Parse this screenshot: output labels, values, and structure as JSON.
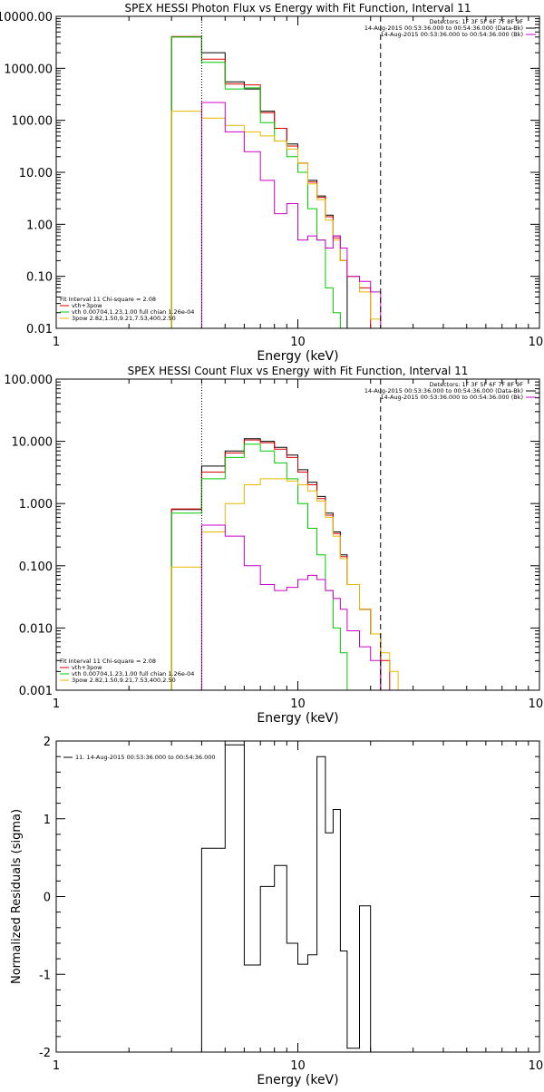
{
  "chart_data": [
    {
      "type": "line",
      "title": "SPEX HESSI Photon Flux vs Energy with Fit Function, Interval 11",
      "xlabel": "Energy (keV)",
      "ylabel": "",
      "xscale": "log",
      "yscale": "log",
      "xlim": [
        1,
        100
      ],
      "ylim": [
        0.01,
        10000
      ],
      "x_tick_labels": [
        "1",
        "10",
        "100"
      ],
      "y_tick_labels": [
        "0.01",
        "0.10",
        "1.00",
        "10.00",
        "100.00",
        "1000.00",
        "10000.00"
      ],
      "vlines": [
        {
          "x": 4.0,
          "style": "dotted",
          "color": "#000000"
        },
        {
          "x": 22.0,
          "style": "dashed",
          "color": "#000000"
        }
      ],
      "header_lines": [
        "Detectors: 1F 3F 5F 6F 7F 8F 9F",
        "14-Aug-2015 00:53:36.000 to 00:54:36.000 (Data-Bk)",
        "14-Aug-2015 00:53:36.000 to 00:54:36.000 (Bk)"
      ],
      "header_colors": [
        "#000000",
        "#000000",
        "#cc00cc"
      ],
      "legend_title": "Fit Interval 11    Chi-square = 2.08",
      "legend_lines": [
        "vth+3pow",
        "vth 0.00704,1.23,1.00  full chian 1.26e-04",
        "3pow 2.82,1.50,9.21,7.53,400,2.50"
      ],
      "legend_colors": [
        "#dd0000",
        "#00cc00",
        "#e8b800"
      ],
      "edges": [
        3.0,
        4.0,
        5.0,
        6.0,
        7.0,
        8.0,
        9.0,
        10.0,
        11.0,
        12.0,
        13.0,
        14.0,
        15.0,
        16.0,
        18.0,
        20.0,
        22.0,
        24.0,
        26.0,
        28.0
      ],
      "series": [
        {
          "name": "",
          "color": "#000000",
          "values": [
            4000,
            2000,
            550,
            400,
            150,
            70,
            35,
            15,
            7,
            3.5,
            1.5,
            0.6,
            0.2,
            null,
            null,
            null,
            null,
            null,
            null
          ]
        },
        {
          "name": "",
          "color": "#dd0000",
          "values": [
            4100,
            1500,
            500,
            480,
            140,
            70,
            32,
            15,
            6.5,
            3.3,
            1.4,
            0.55,
            0.2,
            0.1,
            0.06,
            null,
            null,
            null,
            null
          ]
        },
        {
          "name": "",
          "color": "#00cc00",
          "values": [
            4000,
            1300,
            400,
            420,
            90,
            40,
            20,
            10,
            2,
            0.5,
            0.06,
            0.02,
            0.005,
            null,
            null,
            null,
            null,
            null,
            null
          ]
        },
        {
          "name": "",
          "color": "#e8b800",
          "values": [
            150,
            110,
            80,
            60,
            50,
            40,
            28,
            15,
            6,
            3,
            1.2,
            0.5,
            0.2,
            0.1,
            0.05,
            0.015,
            0.01,
            0.005,
            null
          ]
        },
        {
          "name": "",
          "color": "#cc00cc",
          "values": [
            null,
            220,
            60,
            25,
            7,
            1.6,
            2.5,
            0.5,
            0.6,
            0.5,
            0.35,
            0.6,
            0.35,
            0.1,
            0.08,
            0.05,
            0.005,
            null,
            null
          ]
        }
      ]
    },
    {
      "type": "line",
      "title": "SPEX HESSI Count Flux vs Energy with Fit Function, Interval 11",
      "xlabel": "Energy (keV)",
      "ylabel": "",
      "xscale": "log",
      "yscale": "log",
      "xlim": [
        1,
        100
      ],
      "ylim": [
        0.001,
        100
      ],
      "x_tick_labels": [
        "1",
        "10",
        "100"
      ],
      "y_tick_labels": [
        "0.001",
        "0.010",
        "0.100",
        "1.000",
        "10.000",
        "100.000"
      ],
      "vlines": [
        {
          "x": 4.0,
          "style": "dotted",
          "color": "#000000"
        },
        {
          "x": 22.0,
          "style": "dashed",
          "color": "#000000"
        }
      ],
      "header_lines": [
        "Detectors: 1F 3F 5F 6F 7F 8F 9F",
        "14-Aug-2015 00:53:36.000 to 00:54:36.000 (Data-Bk)",
        "14-Aug-2015 00:53:36.000 to 00:54:36.000 (Bk)"
      ],
      "header_colors": [
        "#000000",
        "#000000",
        "#cc00cc"
      ],
      "legend_title": "Fit Interval 11    Chi-square = 2.08",
      "legend_lines": [
        "vth+3pow",
        "vth 0.00704,1.23,1.00  full chian 1.26e-04",
        "3pow 2.82,1.50,9.21,7.53,400,2.50"
      ],
      "legend_colors": [
        "#dd0000",
        "#00cc00",
        "#e8b800"
      ],
      "edges": [
        3.0,
        4.0,
        5.0,
        6.0,
        7.0,
        8.0,
        9.0,
        10.0,
        11.0,
        12.0,
        13.0,
        14.0,
        15.0,
        16.0,
        18.0,
        20.0,
        22.0,
        24.0,
        26.0,
        28.0
      ],
      "series": [
        {
          "name": "",
          "color": "#000000",
          "values": [
            0.8,
            4.0,
            7.0,
            11.0,
            10.0,
            8.0,
            6.0,
            3.5,
            2.2,
            1.3,
            0.7,
            0.35,
            0.15,
            0.05,
            0.02,
            0.008,
            null,
            null,
            null
          ]
        },
        {
          "name": "",
          "color": "#dd0000",
          "values": [
            0.82,
            3.2,
            6.5,
            10.5,
            9.5,
            7.5,
            5.5,
            3.2,
            2.0,
            1.2,
            0.65,
            0.33,
            0.14,
            0.05,
            0.02,
            0.008,
            0.003,
            null,
            null
          ]
        },
        {
          "name": "",
          "color": "#00cc00",
          "values": [
            0.7,
            2.5,
            5.5,
            9.0,
            7.0,
            4.5,
            2.5,
            1.0,
            0.4,
            0.15,
            0.04,
            0.01,
            0.004,
            0.001,
            null,
            null,
            null,
            null,
            null
          ]
        },
        {
          "name": "",
          "color": "#e8b800",
          "values": [
            0.095,
            0.35,
            1.0,
            2.0,
            2.5,
            2.5,
            2.3,
            2.0,
            1.6,
            1.1,
            0.6,
            0.3,
            0.13,
            0.05,
            0.02,
            0.008,
            0.004,
            0.002,
            0.001
          ]
        },
        {
          "name": "",
          "color": "#cc00cc",
          "values": [
            null,
            0.45,
            0.3,
            0.1,
            0.05,
            0.04,
            0.045,
            0.06,
            0.07,
            0.06,
            0.04,
            0.03,
            0.02,
            0.009,
            0.005,
            0.003,
            0.001,
            null,
            null
          ]
        }
      ]
    },
    {
      "type": "line",
      "title": "",
      "xlabel": "Energy (keV)",
      "ylabel": "Normalized Residuals (sigma)",
      "xscale": "log",
      "yscale": "linear",
      "xlim": [
        1,
        100
      ],
      "ylim": [
        -2,
        2
      ],
      "x_tick_labels": [
        "1",
        "10",
        "100"
      ],
      "y_tick_labels": [
        "-2",
        "-1",
        "0",
        "1",
        "2"
      ],
      "legend_lines": [
        "11. 14-Aug-2015 00:53:36.000 to 00:54:36.000"
      ],
      "legend_colors": [
        "#000000"
      ],
      "edges": [
        4.0,
        5.0,
        6.0,
        7.0,
        8.0,
        9.0,
        10.0,
        11.0,
        12.0,
        13.0,
        14.0,
        15.0,
        16.0,
        18.0,
        20.0,
        22.0
      ],
      "series": [
        {
          "name": "",
          "color": "#000000",
          "values": [
            0.62,
            1.95,
            -0.88,
            0.13,
            0.4,
            -0.6,
            -0.87,
            -0.75,
            1.8,
            0.82,
            1.12,
            -0.7,
            -1.95,
            -0.12,
            -2.1
          ]
        }
      ]
    }
  ]
}
